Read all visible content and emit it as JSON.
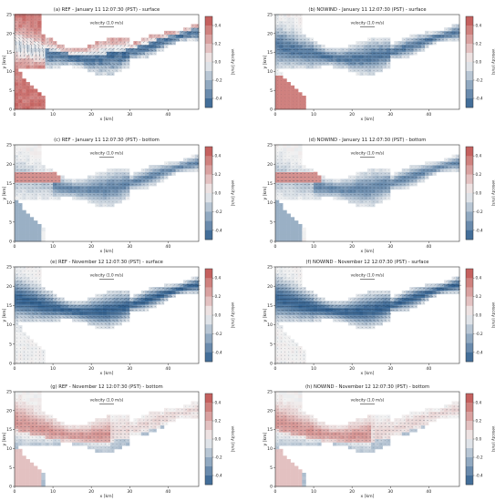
{
  "figure": {
    "colors": {
      "positive": "#c0504d",
      "negative": "#2f5f8f",
      "neutral": "#f2f2f2",
      "axis": "#333333"
    },
    "arrow_label": "velocity (1.0 m/s)",
    "colorbar_label": "velocity [m/s]",
    "colorbar_ticks": [
      "0.4",
      "0.2",
      "0.0",
      "-0.2",
      "-0.4"
    ],
    "xlabel": "x [km]",
    "ylabel": "y [km]"
  },
  "chart_data": [
    {
      "type": "heatmap",
      "title": "(a) REF - January 11 12:07:30 (PST) - surface",
      "xlabel": "x [km]",
      "ylabel": "y [km]",
      "x_ticks": [
        0,
        10,
        20,
        30,
        40
      ],
      "y_ticks": [
        0,
        5,
        10,
        15,
        20,
        25
      ],
      "xlim": [
        0,
        48
      ],
      "ylim": [
        0,
        25
      ],
      "colorbar": {
        "label": "velocity [m/s]",
        "range": [
          -0.5,
          0.5
        ],
        "ticks": [
          0.4,
          0.2,
          0.0,
          -0.2,
          -0.4
        ]
      },
      "pattern": "surface-ref"
    },
    {
      "type": "heatmap",
      "title": "(b) NOWIND - January 11 12:07:30 (PST) - surface",
      "xlabel": "x [km]",
      "ylabel": "y [km]",
      "x_ticks": [
        0,
        10,
        20,
        30,
        40
      ],
      "y_ticks": [
        0,
        5,
        10,
        15,
        20,
        25
      ],
      "xlim": [
        0,
        48
      ],
      "ylim": [
        0,
        25
      ],
      "colorbar": {
        "label": "velocity [m/s]",
        "range": [
          -0.5,
          0.5
        ],
        "ticks": [
          0.4,
          0.2,
          0.0,
          -0.2,
          -0.4
        ]
      },
      "pattern": "surface-nowind"
    },
    {
      "type": "heatmap",
      "title": "(c) REF - January 11 12:07:30 (PST) - bottom",
      "xlabel": "x [km]",
      "ylabel": "y [km]",
      "x_ticks": [
        0,
        10,
        20,
        30,
        40
      ],
      "y_ticks": [
        0,
        5,
        10,
        15,
        20,
        25
      ],
      "xlim": [
        0,
        48
      ],
      "ylim": [
        0,
        25
      ],
      "colorbar": {
        "label": "velocity [m/s]",
        "range": [
          -0.5,
          0.5
        ],
        "ticks": [
          0.4,
          0.2,
          0.0,
          -0.2,
          -0.4
        ]
      },
      "pattern": "bottom-jan"
    },
    {
      "type": "heatmap",
      "title": "(d) NOWIND - January 11 12:07:30 (PST) - bottom",
      "xlabel": "x [km]",
      "ylabel": "y [km]",
      "x_ticks": [
        0,
        10,
        20,
        30,
        40
      ],
      "y_ticks": [
        0,
        5,
        10,
        15,
        20,
        25
      ],
      "xlim": [
        0,
        48
      ],
      "ylim": [
        0,
        25
      ],
      "colorbar": {
        "label": "velocity [m/s]",
        "range": [
          -0.5,
          0.5
        ],
        "ticks": [
          0.4,
          0.2,
          0.0,
          -0.2,
          -0.4
        ]
      },
      "pattern": "bottom-jan"
    },
    {
      "type": "heatmap",
      "title": "(e) REF - November 12 12:07:30 (PST) - surface",
      "xlabel": "x [km]",
      "ylabel": "y [km]",
      "x_ticks": [
        0,
        10,
        20,
        30,
        40
      ],
      "y_ticks": [
        0,
        5,
        10,
        15,
        20,
        25
      ],
      "xlim": [
        0,
        48
      ],
      "ylim": [
        0,
        25
      ],
      "colorbar": {
        "label": "velocity [m/s]",
        "range": [
          -0.5,
          0.5
        ],
        "ticks": [
          0.4,
          0.2,
          0.0,
          -0.2,
          -0.4
        ]
      },
      "pattern": "surface-nov"
    },
    {
      "type": "heatmap",
      "title": "(f) NOWIND - November 12 12:07:30 (PST) - surface",
      "xlabel": "x [km]",
      "ylabel": "y [km]",
      "x_ticks": [
        0,
        10,
        20,
        30,
        40
      ],
      "y_ticks": [
        0,
        5,
        10,
        15,
        20,
        25
      ],
      "xlim": [
        0,
        48
      ],
      "ylim": [
        0,
        25
      ],
      "colorbar": {
        "label": "velocity [m/s]",
        "range": [
          -0.5,
          0.5
        ],
        "ticks": [
          0.4,
          0.2,
          0.0,
          -0.2,
          -0.4
        ]
      },
      "pattern": "surface-nov"
    },
    {
      "type": "heatmap",
      "title": "(g) REF - November 12 12:07:30 (PST) - bottom",
      "xlabel": "x [km]",
      "ylabel": "y [km]",
      "x_ticks": [
        0,
        10,
        20,
        30,
        40
      ],
      "y_ticks": [
        0,
        5,
        10,
        15,
        20,
        25
      ],
      "xlim": [
        0,
        48
      ],
      "ylim": [
        0,
        25
      ],
      "colorbar": {
        "label": "velocity [m/s]",
        "range": [
          -0.5,
          0.5
        ],
        "ticks": [
          0.4,
          0.2,
          0.0,
          -0.2,
          -0.4
        ]
      },
      "pattern": "bottom-nov"
    },
    {
      "type": "heatmap",
      "title": "(h) NOWIND - November 12 12:07:30 (PST) - bottom",
      "xlabel": "x [km]",
      "ylabel": "y [km]",
      "x_ticks": [
        0,
        10,
        20,
        30,
        40
      ],
      "y_ticks": [
        0,
        5,
        10,
        15,
        20,
        25
      ],
      "xlim": [
        0,
        48
      ],
      "ylim": [
        0,
        25
      ],
      "colorbar": {
        "label": "velocity [m/s]",
        "range": [
          -0.5,
          0.5
        ],
        "ticks": [
          0.4,
          0.2,
          0.0,
          -0.2,
          -0.4
        ]
      },
      "pattern": "bottom-nov"
    }
  ]
}
